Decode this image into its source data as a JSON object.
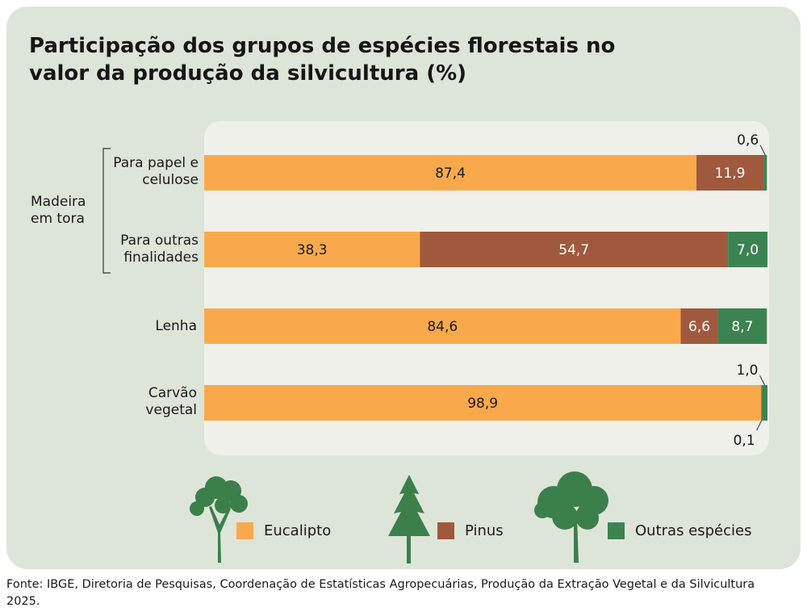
{
  "title": "Participação dos grupos de espécies florestais no valor da produção da silvicultura (%)",
  "group_label": "Madeira em tora",
  "source": "Fonte: IBGE, Diretoria de Pesquisas, Coordenação de Estatísticas Agropecuárias, Produção da Extração Vegetal e da Silvicultura 2025.",
  "colors": {
    "eucalipto": "#f9a94b",
    "pinus": "#a0593c",
    "outras": "#3c8352",
    "card_bg": "#dde5d9",
    "plot_bg": "#eff0e9",
    "tree": "#3b7f4b"
  },
  "icons": [
    "deciduous-tree-icon",
    "conifer-tree-icon",
    "broadleaf-tree-icon"
  ],
  "legend": [
    {
      "label": "Eucalipto",
      "color": "#f9a94b"
    },
    {
      "label": "Pinus",
      "color": "#a0593c"
    },
    {
      "label": "Outras espécies",
      "color": "#3c8352"
    }
  ],
  "chart_data": {
    "type": "bar",
    "orientation": "horizontal",
    "stacked": true,
    "xlim": [
      0,
      100
    ],
    "categories": [
      "Para papel e celulose",
      "Para outras finalidades",
      "Lenha",
      "Carvão vegetal"
    ],
    "series": [
      {
        "name": "Eucalipto",
        "values": [
          87.4,
          38.3,
          84.6,
          98.9
        ],
        "labels": [
          "87,4",
          "38,3",
          "84,6",
          "98,9"
        ]
      },
      {
        "name": "Pinus",
        "values": [
          11.9,
          54.7,
          6.6,
          0.1
        ],
        "labels": [
          "11,9",
          "54,7",
          "6,6",
          "0,1"
        ]
      },
      {
        "name": "Outras espécies",
        "values": [
          0.6,
          7.0,
          8.7,
          1.0
        ],
        "labels": [
          "0,6",
          "7,0",
          "8,7",
          "1,0"
        ]
      }
    ]
  }
}
